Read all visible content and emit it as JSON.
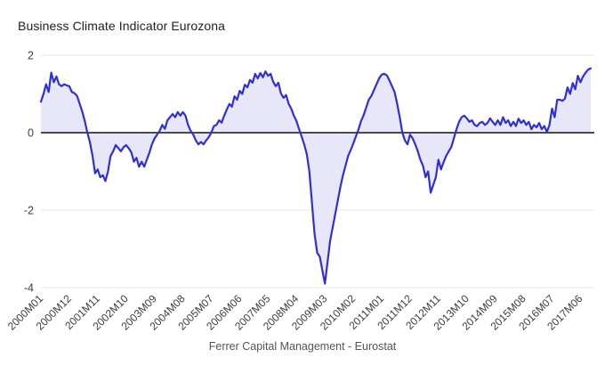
{
  "chart_data": {
    "type": "area",
    "title": "Business Climate Indicator Eurozona",
    "source_caption": "Ferrer Capital Management - Eurostat",
    "x_frequency": "monthly",
    "x_start": "2000M01",
    "x_end": "2017M10",
    "x_tick_labels": [
      "2000M01",
      "2000M12",
      "2001M11",
      "2002M10",
      "2003M09",
      "2004M08",
      "2005M07",
      "2006M06",
      "2007M05",
      "2008M04",
      "2009M03",
      "2010M02",
      "2011M01",
      "2011M12",
      "2012M11",
      "2013M10",
      "2014M09",
      "2015M08",
      "2016M07",
      "2017M06"
    ],
    "x_tick_month_indices": [
      0,
      11,
      22,
      33,
      44,
      55,
      66,
      77,
      88,
      99,
      110,
      121,
      132,
      143,
      154,
      165,
      176,
      187,
      198,
      209
    ],
    "y_ticks": [
      2,
      0,
      -2,
      -4
    ],
    "y_tick_labels": [
      "2",
      "0",
      "-2",
      "-4"
    ],
    "ylim": [
      -4,
      2
    ],
    "baseline": 0,
    "grid": "horizontal",
    "legend": "none",
    "colors": {
      "line": "#3030d2",
      "fill": "#e7e7f9",
      "zero_line": "#4a4a4a",
      "gridline": "#e6e6e6",
      "title_text": "#212121",
      "axis_text": "#3c3c3c",
      "caption_text": "#545454",
      "background": "#ffffff"
    },
    "values": [
      0.8,
      1.0,
      1.25,
      1.05,
      1.55,
      1.3,
      1.45,
      1.25,
      1.2,
      1.25,
      1.22,
      1.2,
      1.05,
      1.02,
      0.95,
      0.75,
      0.55,
      0.3,
      0.0,
      -0.25,
      -0.6,
      -1.05,
      -0.95,
      -1.15,
      -1.1,
      -1.25,
      -1.0,
      -0.6,
      -0.48,
      -0.32,
      -0.4,
      -0.48,
      -0.38,
      -0.32,
      -0.4,
      -0.5,
      -0.75,
      -0.65,
      -0.88,
      -0.75,
      -0.88,
      -0.7,
      -0.52,
      -0.3,
      -0.15,
      -0.05,
      0.05,
      0.2,
      0.1,
      0.32,
      0.4,
      0.48,
      0.4,
      0.53,
      0.44,
      0.53,
      0.44,
      0.2,
      0.05,
      -0.05,
      -0.2,
      -0.3,
      -0.24,
      -0.3,
      -0.2,
      -0.12,
      0.0,
      0.17,
      0.2,
      0.32,
      0.26,
      0.44,
      0.6,
      0.74,
      0.67,
      0.94,
      0.85,
      1.08,
      1.0,
      1.24,
      1.17,
      1.36,
      1.29,
      1.52,
      1.4,
      1.54,
      1.43,
      1.58,
      1.47,
      1.52,
      1.31,
      1.2,
      1.29,
      1.01,
      0.9,
      0.97,
      0.74,
      0.62,
      0.44,
      0.3,
      0.1,
      -0.1,
      -0.3,
      -0.55,
      -1.0,
      -1.8,
      -2.6,
      -3.1,
      -3.2,
      -3.55,
      -3.9,
      -3.35,
      -2.8,
      -2.45,
      -2.1,
      -1.75,
      -1.4,
      -1.1,
      -0.85,
      -0.6,
      -0.45,
      -0.28,
      -0.1,
      0.08,
      0.3,
      0.45,
      0.65,
      0.85,
      0.95,
      1.1,
      1.25,
      1.4,
      1.5,
      1.52,
      1.48,
      1.35,
      1.2,
      1.05,
      0.75,
      0.4,
      0.0,
      -0.2,
      -0.3,
      -0.05,
      -0.15,
      -0.3,
      -0.48,
      -0.7,
      -0.85,
      -1.15,
      -1.0,
      -1.55,
      -1.35,
      -1.15,
      -0.7,
      -0.95,
      -0.76,
      -0.6,
      -0.48,
      -0.37,
      -0.14,
      0.09,
      0.28,
      0.4,
      0.44,
      0.37,
      0.28,
      0.32,
      0.2,
      0.17,
      0.25,
      0.28,
      0.2,
      0.25,
      0.37,
      0.28,
      0.2,
      0.32,
      0.2,
      0.4,
      0.25,
      0.32,
      0.17,
      0.28,
      0.17,
      0.36,
      0.25,
      0.32,
      0.2,
      0.28,
      0.09,
      0.2,
      0.14,
      0.25,
      0.09,
      0.17,
      0.02,
      0.2,
      0.62,
      0.4,
      0.85,
      0.85,
      0.82,
      0.88,
      1.17,
      1.0,
      1.28,
      1.12,
      1.47,
      1.3,
      1.45,
      1.55,
      1.63,
      1.66
    ]
  }
}
